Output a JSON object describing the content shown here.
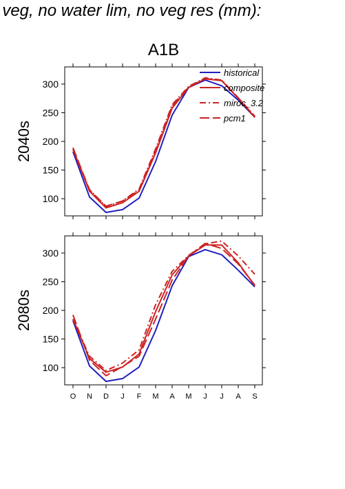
{
  "page": {
    "title": "f veg, no water lim, no veg res (mm):",
    "scenario_label": "A1B"
  },
  "colors": {
    "historical": "#1f1fbf",
    "model": "#cc2222",
    "axis": "#000000"
  },
  "chart_data": [
    {
      "type": "line",
      "panel": "2040s",
      "ylabel": "2040s",
      "title": "A1B",
      "categories": [
        "O",
        "N",
        "D",
        "J",
        "F",
        "M",
        "A",
        "M",
        "J",
        "J",
        "A",
        "S"
      ],
      "ylim": [
        70,
        330
      ],
      "yticks": [
        100,
        150,
        200,
        250,
        300
      ],
      "grid": false,
      "legend_position": "top-right",
      "series": [
        {
          "name": "historical",
          "style": "solid",
          "values": [
            182,
            103,
            76,
            81,
            101,
            165,
            246,
            294,
            307,
            297,
            272,
            242
          ]
        },
        {
          "name": "composite",
          "style": "solid",
          "values": [
            186,
            113,
            84,
            93,
            113,
            180,
            258,
            294,
            309,
            306,
            275,
            242
          ]
        },
        {
          "name": "miroc_3.2",
          "style": "dashdot",
          "values": [
            186,
            116,
            86,
            96,
            117,
            187,
            264,
            296,
            311,
            307,
            276,
            244
          ]
        },
        {
          "name": "pcm1",
          "style": "dashed",
          "values": [
            189,
            115,
            87,
            96,
            115,
            184,
            262,
            295,
            310,
            306,
            276,
            243
          ]
        }
      ]
    },
    {
      "type": "line",
      "panel": "2080s",
      "ylabel": "2080s",
      "categories": [
        "O",
        "N",
        "D",
        "J",
        "F",
        "M",
        "A",
        "M",
        "J",
        "J",
        "A",
        "S"
      ],
      "ylim": [
        70,
        330
      ],
      "yticks": [
        100,
        150,
        200,
        250,
        300
      ],
      "grid": false,
      "series": [
        {
          "name": "historical",
          "style": "solid",
          "values": [
            182,
            103,
            76,
            81,
            101,
            165,
            243,
            294,
            306,
            297,
            270,
            241
          ]
        },
        {
          "name": "composite",
          "style": "solid",
          "values": [
            185,
            116,
            92,
            101,
            124,
            198,
            262,
            295,
            314,
            314,
            283,
            243
          ]
        },
        {
          "name": "miroc_3.2",
          "style": "dashdot",
          "values": [
            184,
            120,
            95,
            108,
            131,
            210,
            268,
            296,
            316,
            321,
            295,
            263
          ]
        },
        {
          "name": "pcm1",
          "style": "dashed",
          "values": [
            192,
            113,
            86,
            102,
            120,
            185,
            253,
            295,
            317,
            308,
            281,
            244
          ]
        }
      ]
    }
  ]
}
